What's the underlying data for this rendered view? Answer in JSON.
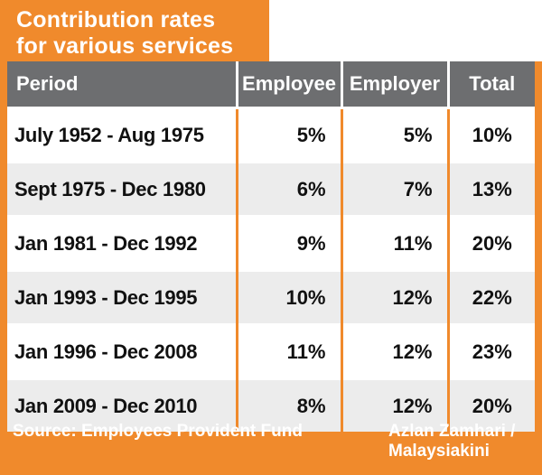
{
  "title": {
    "line1": "Contribution rates",
    "line2": "for various services"
  },
  "table": {
    "headers": {
      "period": "Period",
      "employee": "Employee",
      "employer": "Employer",
      "total": "Total"
    },
    "rows": [
      {
        "period": "July 1952 - Aug 1975",
        "employee": "5%",
        "employer": "5%",
        "total": "10%"
      },
      {
        "period": "Sept 1975 - Dec 1980",
        "employee": "6%",
        "employer": "7%",
        "total": "13%"
      },
      {
        "period": "Jan 1981 - Dec 1992",
        "employee": "9%",
        "employer": "11%",
        "total": "20%"
      },
      {
        "period": "Jan 1993 - Dec 1995",
        "employee": "10%",
        "employer": "12%",
        "total": "22%"
      },
      {
        "period": "Jan 1996 - Dec 2008",
        "employee": "11%",
        "employer": "12%",
        "total": "23%"
      },
      {
        "period": "Jan 2009 - Dec 2010",
        "employee": "8%",
        "employer": "12%",
        "total": "20%"
      }
    ]
  },
  "footer": {
    "source": "Source: Employees Provident Fund",
    "credit_line1": "Azlan Zamhari /",
    "credit_line2": "Malaysiakini"
  },
  "colors": {
    "accent": "#f08a2c",
    "header_bg": "#6d6e70",
    "row_alt": "#ececec"
  }
}
